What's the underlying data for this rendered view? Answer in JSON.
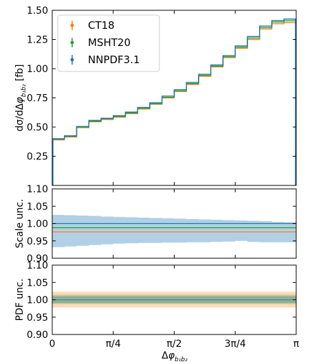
{
  "chart_data": [
    {
      "type": "line",
      "panel": "cross-section",
      "ylabel": "dσ/dΔφ_{b1b2} [fb]",
      "ylim": [
        0.0,
        1.5
      ],
      "yticks": [
        "0.25",
        "0.50",
        "0.75",
        "1.00",
        "1.25",
        "1.50"
      ],
      "xlim": [
        0,
        3.14159
      ],
      "legend_position": "top-left",
      "bin_edges": [
        0,
        0.1571,
        0.3142,
        0.4712,
        0.6283,
        0.7854,
        0.9425,
        1.0996,
        1.2566,
        1.4137,
        1.5708,
        1.7279,
        1.885,
        2.042,
        2.1991,
        2.3562,
        2.5133,
        2.6704,
        2.8274,
        2.9845,
        3.1416
      ],
      "series": [
        {
          "name": "CT18",
          "color": "#ff7f0e",
          "values": [
            0.39,
            0.415,
            0.495,
            0.545,
            0.565,
            0.585,
            0.615,
            0.655,
            0.695,
            0.75,
            0.805,
            0.865,
            0.935,
            1.015,
            1.095,
            1.175,
            1.25,
            1.34,
            1.385,
            1.395
          ]
        },
        {
          "name": "MSHT20",
          "color": "#2ca02c",
          "values": [
            0.395,
            0.42,
            0.5,
            0.55,
            0.57,
            0.59,
            0.62,
            0.66,
            0.7,
            0.755,
            0.81,
            0.872,
            0.942,
            1.022,
            1.102,
            1.185,
            1.262,
            1.352,
            1.4,
            1.41
          ]
        },
        {
          "name": "NNPDF3.1",
          "color": "#1f77b4",
          "values": [
            0.4,
            0.425,
            0.505,
            0.557,
            0.575,
            0.597,
            0.628,
            0.668,
            0.708,
            0.765,
            0.82,
            0.882,
            0.952,
            1.032,
            1.112,
            1.195,
            1.275,
            1.365,
            1.412,
            1.425
          ]
        }
      ]
    },
    {
      "type": "area",
      "panel": "scale-uncertainty",
      "ylabel": "Scale unc.",
      "ylim": [
        0.9,
        1.1
      ],
      "yticks": [
        "0.90",
        "0.95",
        "1.00",
        "1.05",
        "1.10"
      ],
      "series": [
        {
          "name": "CT18",
          "color": "#ff7f0e",
          "central": 0.976,
          "band": [
            0.976,
            0.976
          ]
        },
        {
          "name": "MSHT20",
          "color": "#2ca02c",
          "central": 0.988,
          "band": [
            0.988,
            0.988
          ]
        },
        {
          "name": "NNPDF3.1",
          "color": "#1f77b4",
          "central": 1.0,
          "band_low": [
            0.932,
            0.934,
            0.936,
            0.938,
            0.94,
            0.942,
            0.943,
            0.944,
            0.944,
            0.945,
            0.945,
            0.946,
            0.946,
            0.947,
            0.948,
            0.95,
            0.947,
            0.946,
            0.946,
            0.946
          ],
          "band_high": [
            1.025,
            1.024,
            1.023,
            1.022,
            1.02,
            1.019,
            1.018,
            1.017,
            1.016,
            1.015,
            1.014,
            1.013,
            1.012,
            1.011,
            1.01,
            1.009,
            1.008,
            1.007,
            1.005,
            1.004
          ]
        }
      ]
    },
    {
      "type": "area",
      "panel": "pdf-uncertainty",
      "ylabel": "PDF unc.",
      "ylim": [
        0.9,
        1.1
      ],
      "yticks": [
        "0.90",
        "0.95",
        "1.00",
        "1.05",
        "1.10"
      ],
      "xlabel": "Δφ_{b1b2}",
      "xticks": [
        "0",
        "π/4",
        "π/2",
        "3π/4",
        "π"
      ],
      "series": [
        {
          "name": "CT18",
          "color": "#ff7f0e",
          "band": [
            0.978,
            1.023
          ]
        },
        {
          "name": "MSHT20",
          "color": "#2ca02c",
          "band": [
            0.988,
            1.014
          ]
        },
        {
          "name": "NNPDF3.1",
          "color": "#1f77b4",
          "band": [
            0.991,
            1.01
          ]
        }
      ]
    }
  ]
}
